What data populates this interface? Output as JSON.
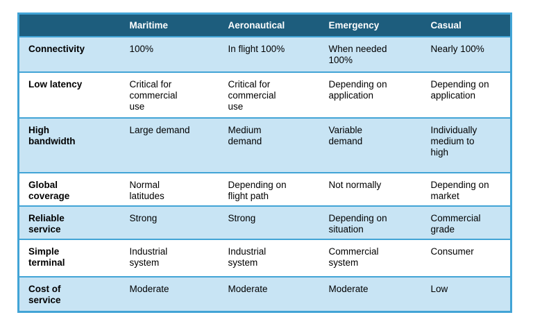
{
  "colors": {
    "header_bg": "#1d5d7d",
    "header_text": "#ffffff",
    "row_alt_bg": "#c8e4f4",
    "row_bg": "#ffffff",
    "border": "#42a4d6",
    "body_text": "#000000"
  },
  "table": {
    "columns": [
      "",
      "Maritime",
      "Aeronautical",
      "Emergency",
      "Casual"
    ],
    "rows": [
      {
        "label": "Connectivity",
        "cells": [
          "100%",
          "In flight 100%",
          "When needed\n100%",
          "Nearly 100%"
        ]
      },
      {
        "label": "Low latency",
        "cells": [
          "Critical for\ncommercial\nuse",
          "Critical for\ncommercial\nuse",
          "Depending on\napplication",
          "Depending on\napplication"
        ]
      },
      {
        "label": "High\nbandwidth",
        "cells": [
          "Large demand",
          "Medium\ndemand",
          "Variable\ndemand",
          "Individually\nmedium to\nhigh"
        ]
      },
      {
        "label": "Global\ncoverage",
        "cells": [
          "Normal\nlatitudes",
          "Depending on\nflight path",
          "Not normally",
          "Depending on\nmarket"
        ]
      },
      {
        "label": "Reliable\nservice",
        "cells": [
          "Strong",
          "Strong",
          "Depending on\nsituation",
          "Commercial\ngrade"
        ]
      },
      {
        "label": "Simple\nterminal",
        "cells": [
          "Industrial\nsystem",
          "Industrial\nsystem",
          "Commercial\nsystem",
          "Consumer"
        ]
      },
      {
        "label": "Cost of\nservice",
        "cells": [
          "Moderate",
          "Moderate",
          "Moderate",
          "Low"
        ]
      }
    ]
  }
}
